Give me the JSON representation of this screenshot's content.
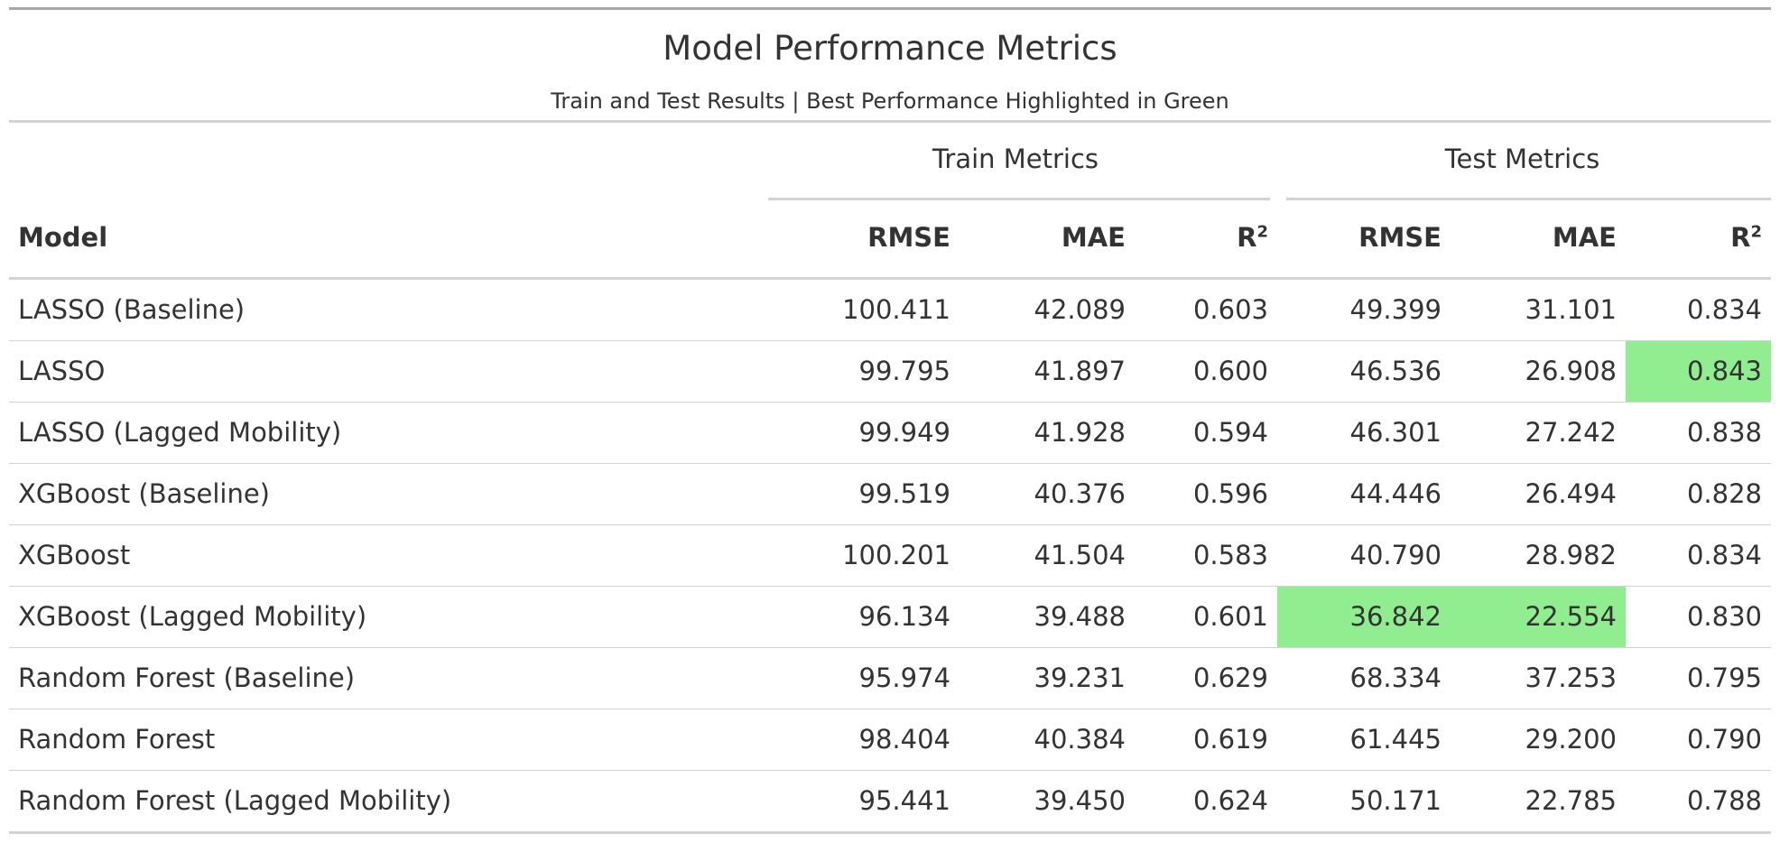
{
  "title": "Model Performance Metrics",
  "subtitle": "Train and Test Results | Best Performance Highlighted in Green",
  "highlight_color": "#90ee90",
  "spanners": [
    "Train Metrics",
    "Test Metrics"
  ],
  "chart_data": {
    "type": "table",
    "title": "Model Performance Metrics",
    "subtitle": "Train and Test Results | Best Performance Highlighted in Green",
    "column_groups": [
      {
        "label": "",
        "columns": [
          "Model"
        ]
      },
      {
        "label": "Train Metrics",
        "columns": [
          "RMSE",
          "MAE",
          "R²"
        ]
      },
      {
        "label": "Test Metrics",
        "columns": [
          "RMSE",
          "MAE",
          "R²"
        ]
      }
    ],
    "columns": [
      "Model",
      "RMSE",
      "MAE",
      "R²",
      "RMSE",
      "MAE",
      "R²"
    ],
    "rows": [
      [
        "LASSO (Baseline)",
        "100.411",
        "42.089",
        "0.603",
        "49.399",
        "31.101",
        "0.834"
      ],
      [
        "LASSO",
        "99.795",
        "41.897",
        "0.600",
        "46.536",
        "26.908",
        "0.843"
      ],
      [
        "LASSO (Lagged Mobility)",
        "99.949",
        "41.928",
        "0.594",
        "46.301",
        "27.242",
        "0.838"
      ],
      [
        "XGBoost (Baseline)",
        "99.519",
        "40.376",
        "0.596",
        "44.446",
        "26.494",
        "0.828"
      ],
      [
        "XGBoost",
        "100.201",
        "41.504",
        "0.583",
        "40.790",
        "28.982",
        "0.834"
      ],
      [
        "XGBoost (Lagged Mobility)",
        "96.134",
        "39.488",
        "0.601",
        "36.842",
        "22.554",
        "0.830"
      ],
      [
        "Random Forest (Baseline)",
        "95.974",
        "39.231",
        "0.629",
        "68.334",
        "37.253",
        "0.795"
      ],
      [
        "Random Forest",
        "98.404",
        "40.384",
        "0.619",
        "61.445",
        "29.200",
        "0.790"
      ],
      [
        "Random Forest (Lagged Mobility)",
        "95.441",
        "39.450",
        "0.624",
        "50.171",
        "22.785",
        "0.788"
      ]
    ],
    "highlighted_cells": [
      [
        1,
        6
      ],
      [
        5,
        4
      ],
      [
        5,
        5
      ]
    ]
  }
}
